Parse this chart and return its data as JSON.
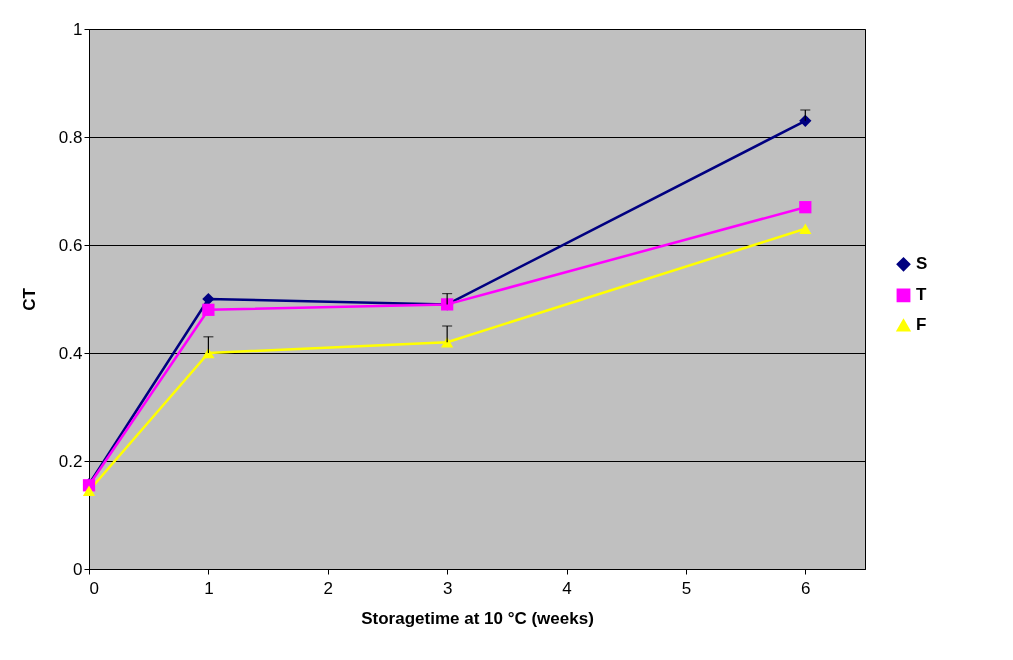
{
  "chart_data": {
    "type": "line",
    "xlabel": "Storagetime at 10 °C (weeks)",
    "ylabel": "CT",
    "x": [
      0,
      1,
      3,
      6
    ],
    "xlim": [
      0,
      6.5
    ],
    "xticks": [
      0,
      1,
      2,
      3,
      4,
      5,
      6
    ],
    "ylim": [
      0,
      1
    ],
    "yticks": [
      0,
      0.2,
      0.4,
      0.6,
      0.8,
      1
    ],
    "grid": "y",
    "legend": "right",
    "series": [
      {
        "name": "S",
        "color": "#000080",
        "marker": "diamond",
        "values": [
          0.157,
          0.5,
          0.49,
          0.83
        ],
        "errors": [
          null,
          null,
          [
            0.49,
            0.51
          ],
          [
            0.83,
            0.85
          ]
        ]
      },
      {
        "name": "T",
        "color": "#ff00ff",
        "marker": "square",
        "values": [
          0.155,
          0.48,
          0.49,
          0.67
        ]
      },
      {
        "name": "F",
        "color": "#ffff00",
        "marker": "triangle",
        "values": [
          0.145,
          0.4,
          0.42,
          0.63
        ],
        "errors": [
          null,
          [
            0.4,
            0.43
          ],
          [
            0.42,
            0.45
          ],
          null
        ]
      }
    ]
  }
}
